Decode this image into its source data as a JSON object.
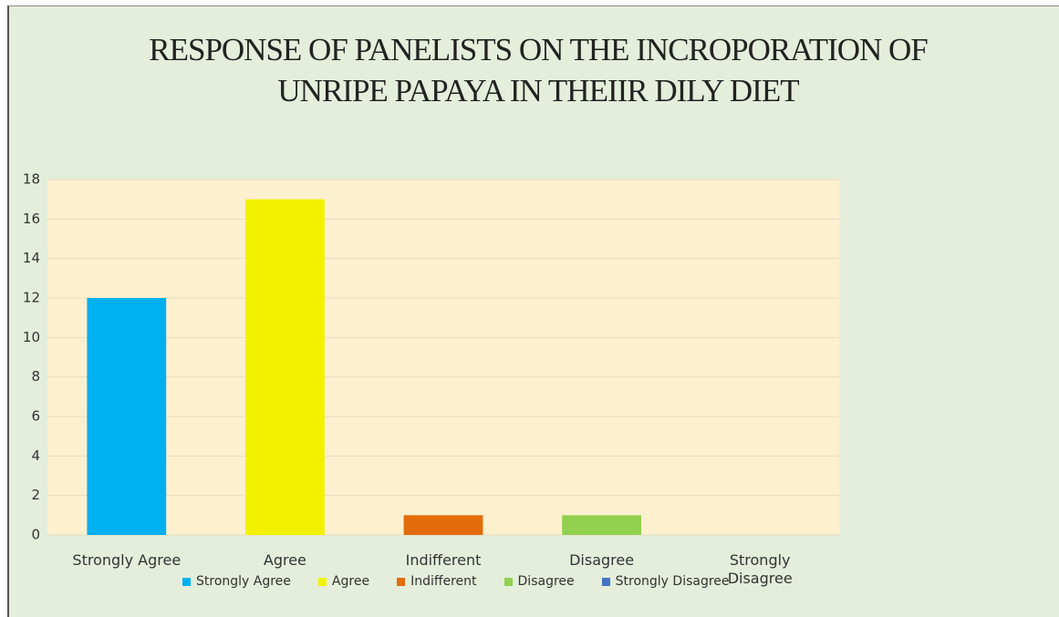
{
  "chart_data": {
    "type": "bar",
    "title": "RESPONSE OF PANELISTS ON THE INCROPORATION OF UNRIPE PAPAYA IN THEIIR DILY DIET",
    "categories": [
      "Strongly Agree",
      "Agree",
      "Indifferent",
      "Disagree",
      "Strongly Disagree"
    ],
    "values": [
      12,
      17,
      1,
      1,
      0
    ],
    "colors": [
      "#00b0f0",
      "#f2f200",
      "#e36c0a",
      "#92d050",
      "#4472c4"
    ],
    "ylim": [
      0,
      18
    ],
    "yticks": [
      0,
      2,
      4,
      6,
      8,
      10,
      12,
      14,
      16,
      18
    ],
    "grid": true,
    "legend": "bottom"
  }
}
